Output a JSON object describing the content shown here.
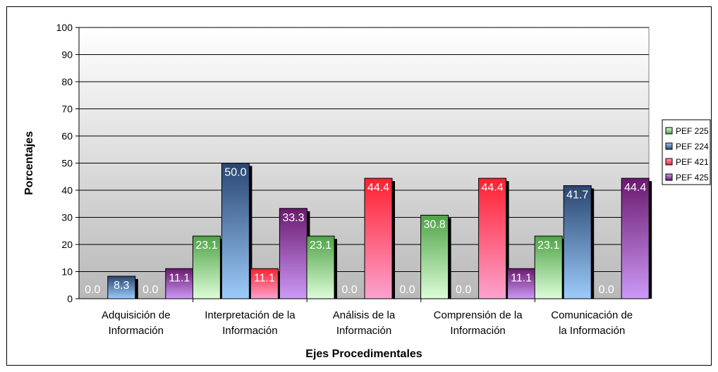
{
  "chart_data": {
    "type": "bar",
    "title": "",
    "xlabel": "Ejes Procedimentales",
    "ylabel": "Porcentajes",
    "ylim": [
      0,
      100
    ],
    "yticks": [
      0,
      10,
      20,
      30,
      40,
      50,
      60,
      70,
      80,
      90,
      100
    ],
    "grid": true,
    "legend_position": "right",
    "categories": [
      [
        "Adquisición de",
        "Información"
      ],
      [
        "Interpretación de la",
        "Información"
      ],
      [
        "Análisis de la",
        "Información"
      ],
      [
        "Comprensión de la",
        "Información"
      ],
      [
        "Comunicación de",
        "la Información"
      ]
    ],
    "series": [
      {
        "name": "PEF 225",
        "values": [
          0,
          23.1,
          23.1,
          30.8,
          23.1
        ],
        "labels": [
          "0.0",
          "23.1",
          "23.1",
          "30.8",
          "23.1"
        ],
        "color_light": "#ddfcd8",
        "color_dark": "#4fa447"
      },
      {
        "name": "PEF 224",
        "values": [
          8.3,
          50.0,
          0,
          0,
          41.7
        ],
        "labels": [
          "8.3",
          "50.0",
          "0.0",
          "0.0",
          "41.7"
        ],
        "color_light": "#9ccbfb",
        "color_dark": "#2a4670"
      },
      {
        "name": "PEF 421",
        "values": [
          0,
          11.1,
          44.4,
          44.4,
          0
        ],
        "labels": [
          "0.0",
          "11.1",
          "44.4",
          "44.4",
          "0.0"
        ],
        "color_light": "#fba3cf",
        "color_dark": "#ff2030"
      },
      {
        "name": "PEF 425",
        "values": [
          11.1,
          33.3,
          0,
          11.1,
          44.4
        ],
        "labels": [
          "11.1",
          "33.3",
          "0.0",
          "11.1",
          "44.4"
        ],
        "color_light": "#cc99f7",
        "color_dark": "#6a1a6e"
      }
    ]
  }
}
